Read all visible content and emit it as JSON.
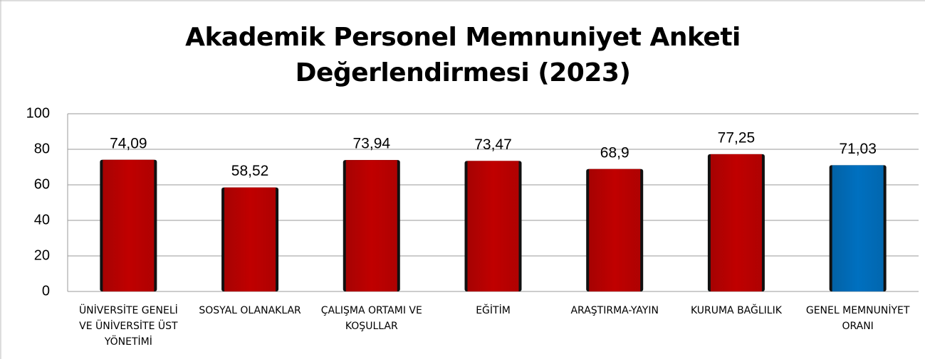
{
  "chart_data": {
    "type": "bar",
    "title": "Akademik Personel Memnuniyet Anketi Değerlendirmesi (2023)",
    "categories": [
      "ÜNİVERSİTE GENELİ VE ÜNİVERSİTE ÜST YÖNETİMİ",
      "SOSYAL OLANAKLAR",
      "ÇALIŞMA ORTAMI VE KOŞULLAR",
      "EĞİTİM",
      "ARAŞTIRMA-YAYIN",
      "KURUMA BAĞLILIK",
      "GENEL MEMNUNİYET ORANI"
    ],
    "values": [
      74.09,
      58.52,
      73.94,
      73.47,
      68.9,
      77.25,
      71.03
    ],
    "value_labels": [
      "74,09",
      "58,52",
      "73,94",
      "73,47",
      "68,9",
      "77,25",
      "71,03"
    ],
    "colors": [
      "#c00000",
      "#c00000",
      "#c00000",
      "#c00000",
      "#c00000",
      "#c00000",
      "#0070c0"
    ],
    "ylim": [
      0,
      100
    ],
    "yticks": [
      0,
      20,
      40,
      60,
      80,
      100
    ],
    "grid": true
  }
}
